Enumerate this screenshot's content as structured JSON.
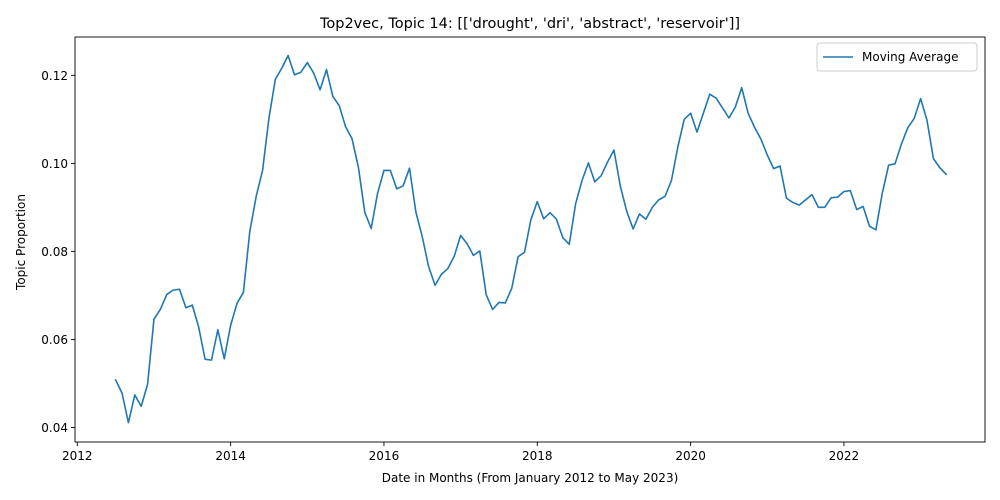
{
  "chart_data": {
    "type": "line",
    "title": "Top2vec, Topic 14: [['drought', 'dri', 'abstract', 'reservoir']]",
    "xlabel": "Date in Months (From January 2012 to May 2023)",
    "ylabel": "Topic Proportion",
    "xlim": [
      2011.97,
      2023.84
    ],
    "ylim": [
      0.0367,
      0.1287
    ],
    "xticks": [
      2012,
      2014,
      2016,
      2018,
      2020,
      2022
    ],
    "yticks": [
      0.04,
      0.06,
      0.08,
      0.1,
      0.12
    ],
    "ytick_labels": [
      "0.04",
      "0.06",
      "0.08",
      "0.10",
      "0.12"
    ],
    "grid": false,
    "legend_position": "top-right",
    "colors": {
      "series": "#1f77b4"
    },
    "series": [
      {
        "name": "Moving Average",
        "x_start": "2012-07",
        "x_step": "month",
        "values": [
          0.0508,
          0.0478,
          0.0411,
          0.0474,
          0.0448,
          0.0498,
          0.0646,
          0.0668,
          0.0702,
          0.0712,
          0.0714,
          0.0672,
          0.0678,
          0.0628,
          0.0555,
          0.0553,
          0.0622,
          0.0556,
          0.0632,
          0.0682,
          0.0707,
          0.0845,
          0.0925,
          0.0984,
          0.1103,
          0.1191,
          0.1216,
          0.1245,
          0.1201,
          0.1207,
          0.1229,
          0.1205,
          0.1167,
          0.1213,
          0.1152,
          0.1131,
          0.1083,
          0.1056,
          0.0991,
          0.0889,
          0.0852,
          0.0932,
          0.0984,
          0.0984,
          0.0942,
          0.0949,
          0.0989,
          0.0889,
          0.0833,
          0.0765,
          0.0723,
          0.0748,
          0.0761,
          0.0789,
          0.0836,
          0.0818,
          0.0791,
          0.0801,
          0.0702,
          0.0668,
          0.0684,
          0.0683,
          0.0716,
          0.0788,
          0.0798,
          0.0872,
          0.0913,
          0.0874,
          0.0888,
          0.0873,
          0.0831,
          0.0816,
          0.0908,
          0.0961,
          0.1001,
          0.0958,
          0.0972,
          0.1003,
          0.103,
          0.0948,
          0.0891,
          0.0851,
          0.0885,
          0.0873,
          0.09,
          0.0917,
          0.0925,
          0.0961,
          0.1037,
          0.11,
          0.1114,
          0.1071,
          0.1114,
          0.1157,
          0.1148,
          0.1126,
          0.1103,
          0.1128,
          0.1172,
          0.1114,
          0.1082,
          0.1055,
          0.1019,
          0.0988,
          0.0994,
          0.0921,
          0.0911,
          0.0905,
          0.0917,
          0.0929,
          0.09,
          0.09,
          0.0922,
          0.0923,
          0.0936,
          0.0938,
          0.0895,
          0.0902,
          0.0857,
          0.0849,
          0.0932,
          0.0996,
          0.0999,
          0.1044,
          0.1081,
          0.1102,
          0.1147,
          0.1098,
          0.1011,
          0.099,
          0.0975
        ]
      }
    ]
  }
}
